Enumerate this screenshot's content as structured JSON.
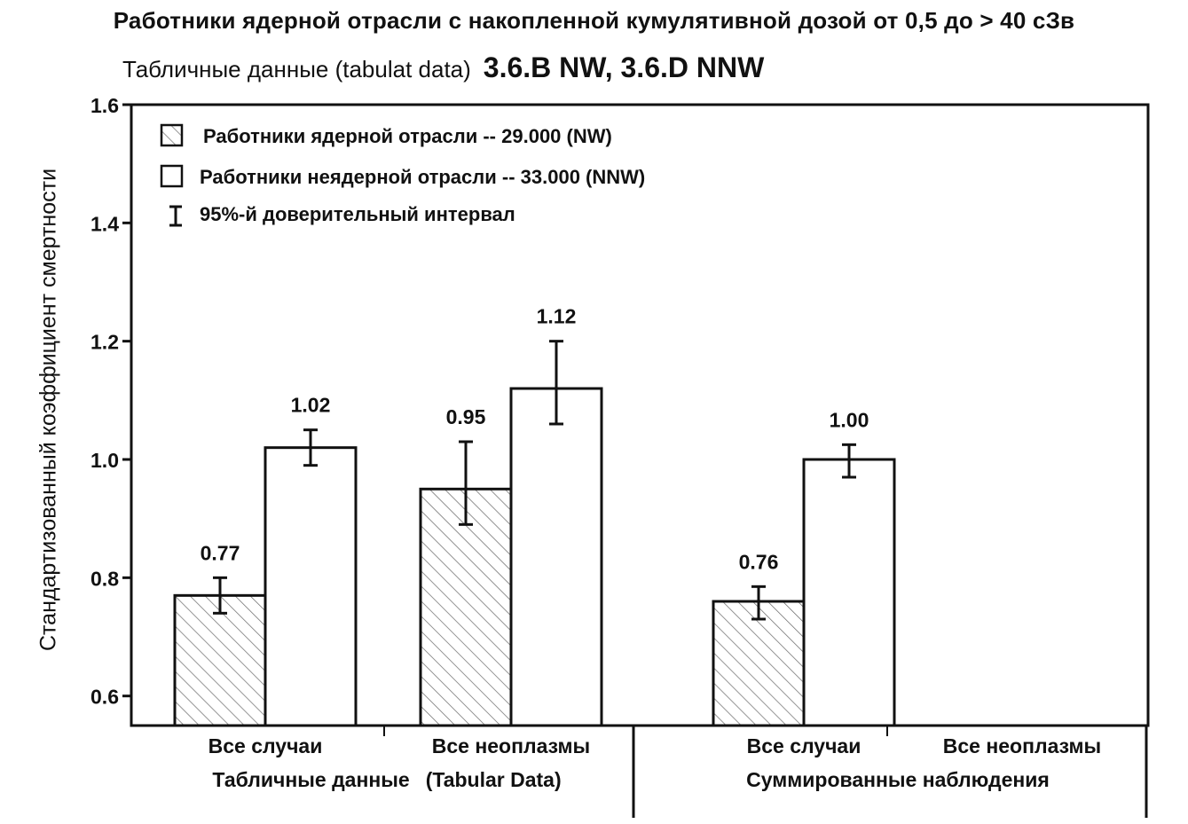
{
  "chart_data": {
    "type": "bar",
    "title": "Работники ядерной отрасли с накопленной кумулятивной дозой от 0,5 до > 40 сЗв",
    "subtitle": "Табличные данные (tabulat data)",
    "subtitle_code": "3.6.B NW, 3.6.D NNW",
    "xlabel": "",
    "ylabel": "Стандартизованный коэффициент смертности",
    "ylim": [
      0.55,
      1.6
    ],
    "yticks": [
      0.6,
      0.8,
      1.0,
      1.2,
      1.4,
      1.6
    ],
    "ytick_labels": [
      "0.6",
      "0.8",
      "1.0",
      "1.2",
      "1.4",
      "1.6"
    ],
    "grid": false,
    "legend_position": "top-left",
    "categories": [
      "Все случаи",
      "Все неоплазмы",
      "Все случаи",
      "Все неоплазмы"
    ],
    "groups": [
      {
        "label": "Табличные данные",
        "label_extra": "(Tabular Data)",
        "categories": [
          0,
          1
        ]
      },
      {
        "label": "Суммированные наблюдения",
        "label_extra": "",
        "categories": [
          2,
          3
        ]
      }
    ],
    "series": [
      {
        "name": "Работники ядерной отрасли -- 29.000 (NW)",
        "pattern": "hatched",
        "values": [
          0.77,
          0.95,
          0.76,
          null
        ],
        "value_labels": [
          "0.77",
          "0.95",
          "0.76",
          null
        ],
        "ci_low": [
          0.74,
          0.89,
          0.73,
          null
        ],
        "ci_high": [
          0.8,
          1.03,
          0.785,
          null
        ]
      },
      {
        "name": "Работники неядерной отрасли -- 33.000 (NNW)",
        "pattern": "empty",
        "values": [
          1.02,
          1.12,
          1.0,
          null
        ],
        "value_labels": [
          "1.02",
          "1.12",
          "1.00",
          null
        ],
        "ci_low": [
          0.99,
          1.06,
          0.97,
          null
        ],
        "ci_high": [
          1.05,
          1.2,
          1.025,
          null
        ]
      }
    ],
    "ci_legend": "95%-й доверительный интервал",
    "colors": {
      "ink": "#111111",
      "hatch": "#555555",
      "bar_fill": "#ffffff"
    }
  }
}
